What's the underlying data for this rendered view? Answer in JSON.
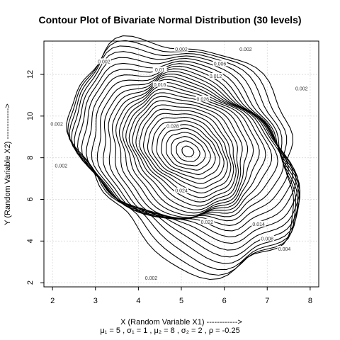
{
  "chart_data": {
    "type": "contour",
    "title": "Contour Plot of Bivariate Normal Distribution (30 levels)",
    "xlabel": "X (Random Variable X1) ------------>",
    "ylabel": "Y (Random Variable X2) ------------>",
    "subtitle": "μ₁ = 5 ,  σ₁ = 1 ,  μ₂ = 8 ,  σ₂ = 2 ,  ρ = -0.25",
    "xlim": [
      1.8,
      8.2
    ],
    "ylim": [
      1.8,
      13.6
    ],
    "xticks": [
      2,
      3,
      4,
      5,
      6,
      7,
      8
    ],
    "yticks": [
      2,
      4,
      6,
      8,
      10,
      12
    ],
    "grid": true,
    "levels": 30,
    "level_step": 0.002,
    "center": [
      5.15,
      8.3
    ],
    "contour_labels": [
      {
        "text": "0.002",
        "x": 5.0,
        "y": 13.2
      },
      {
        "text": "0.002",
        "x": 3.2,
        "y": 12.6
      },
      {
        "text": "0.002",
        "x": 6.5,
        "y": 13.2
      },
      {
        "text": "0.002",
        "x": 7.8,
        "y": 11.3
      },
      {
        "text": "0.002",
        "x": 2.1,
        "y": 9.6
      },
      {
        "text": "0.002",
        "x": 2.2,
        "y": 7.6
      },
      {
        "text": "0.002",
        "x": 4.3,
        "y": 2.2
      },
      {
        "text": "0.006",
        "x": 5.9,
        "y": 12.5
      },
      {
        "text": "0.01",
        "x": 4.5,
        "y": 12.2
      },
      {
        "text": "0.012",
        "x": 5.8,
        "y": 11.9
      },
      {
        "text": "0.016",
        "x": 4.5,
        "y": 11.5
      },
      {
        "text": "0.026",
        "x": 5.5,
        "y": 10.8
      },
      {
        "text": "0.028",
        "x": 4.8,
        "y": 9.5
      },
      {
        "text": "0.014",
        "x": 6.8,
        "y": 4.8
      },
      {
        "text": "0.008",
        "x": 7.0,
        "y": 4.1
      },
      {
        "text": "0.004",
        "x": 7.4,
        "y": 3.6
      },
      {
        "text": "0.022",
        "x": 5.6,
        "y": 4.9
      },
      {
        "text": "0.024",
        "x": 5.0,
        "y": 6.4
      }
    ]
  }
}
